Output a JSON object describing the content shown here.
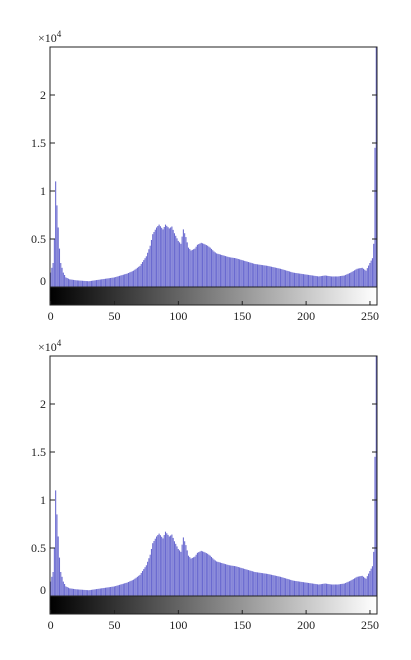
{
  "chart_data": [
    {
      "type": "bar",
      "title": "",
      "xlabel": "",
      "ylabel": "",
      "y_multiplier": "×10",
      "y_multiplier_exponent": "4",
      "xlim": [
        0,
        255
      ],
      "ylim": [
        0,
        25000
      ],
      "x_ticks": [
        0,
        50,
        100,
        150,
        200,
        250
      ],
      "x_tick_labels": [
        "0",
        "50",
        "100",
        "150",
        "200",
        "250"
      ],
      "y_ticks": [
        0,
        5000,
        10000,
        15000,
        20000
      ],
      "y_tick_labels": [
        "0",
        "0.5",
        "1",
        "1.5",
        "2"
      ],
      "colorbar": "grayscale 0-255",
      "bar_color": "#6a6ad0",
      "grid": false,
      "series": [
        {
          "x": [
            0,
            2,
            3,
            4,
            5,
            6,
            7,
            8,
            10,
            12,
            15,
            20,
            30,
            40,
            50,
            55,
            60,
            65,
            70,
            75,
            78,
            80,
            83,
            85,
            88,
            90,
            93,
            95,
            97,
            100,
            102,
            104,
            106,
            108,
            110,
            113,
            115,
            118,
            120,
            123,
            125,
            128,
            130,
            135,
            140,
            145,
            150,
            160,
            170,
            180,
            190,
            200,
            205,
            210,
            215,
            220,
            225,
            230,
            235,
            240,
            244,
            247,
            250,
            252,
            253,
            254,
            255
          ],
          "y": [
            1500,
            2500,
            5000,
            11000,
            8500,
            6200,
            4000,
            2500,
            1500,
            1000,
            800,
            700,
            600,
            800,
            1000,
            1200,
            1400,
            1700,
            2200,
            3200,
            4300,
            5500,
            6200,
            6500,
            6000,
            6500,
            6100,
            6300,
            5600,
            4800,
            4500,
            6000,
            5200,
            4100,
            3800,
            4000,
            4400,
            4600,
            4500,
            4300,
            4100,
            3700,
            3500,
            3300,
            3100,
            3000,
            2800,
            2400,
            2200,
            1900,
            1500,
            1300,
            1200,
            1100,
            1200,
            1100,
            1100,
            1200,
            1500,
            1900,
            2000,
            1700,
            2500,
            3000,
            4500,
            14500,
            25000
          ]
        }
      ]
    },
    {
      "type": "bar",
      "title": "",
      "xlabel": "",
      "ylabel": "",
      "y_multiplier": "×10",
      "y_multiplier_exponent": "4",
      "xlim": [
        0,
        255
      ],
      "ylim": [
        0,
        25000
      ],
      "x_ticks": [
        0,
        50,
        100,
        150,
        200,
        250
      ],
      "x_tick_labels": [
        "0",
        "50",
        "100",
        "150",
        "200",
        "250"
      ],
      "y_ticks": [
        0,
        5000,
        10000,
        15000,
        20000
      ],
      "y_tick_labels": [
        "0",
        "0.5",
        "1",
        "1.5",
        "2"
      ],
      "colorbar": "grayscale 0-255",
      "bar_color": "#6a6ad0",
      "grid": false,
      "series": [
        {
          "x": [
            0,
            2,
            3,
            4,
            5,
            6,
            7,
            8,
            10,
            12,
            15,
            20,
            30,
            40,
            50,
            55,
            60,
            65,
            70,
            75,
            78,
            80,
            83,
            85,
            88,
            90,
            93,
            95,
            97,
            100,
            102,
            104,
            106,
            108,
            110,
            113,
            115,
            118,
            120,
            123,
            125,
            128,
            130,
            135,
            140,
            145,
            150,
            160,
            170,
            180,
            190,
            200,
            205,
            210,
            215,
            220,
            225,
            230,
            235,
            240,
            244,
            247,
            250,
            252,
            253,
            254,
            255
          ],
          "y": [
            1500,
            2500,
            5000,
            11000,
            8500,
            6200,
            4000,
            2500,
            1500,
            1000,
            800,
            700,
            600,
            800,
            1000,
            1200,
            1400,
            1700,
            2200,
            3200,
            4300,
            5500,
            6200,
            6500,
            6000,
            6700,
            6200,
            6400,
            5700,
            4900,
            4600,
            6100,
            5300,
            4200,
            3900,
            4100,
            4500,
            4700,
            4600,
            4400,
            4200,
            3800,
            3600,
            3400,
            3200,
            3100,
            2900,
            2500,
            2300,
            2000,
            1600,
            1400,
            1300,
            1200,
            1300,
            1200,
            1200,
            1300,
            1600,
            2000,
            2100,
            1800,
            2600,
            3100,
            4600,
            14500,
            25000
          ]
        }
      ]
    }
  ]
}
